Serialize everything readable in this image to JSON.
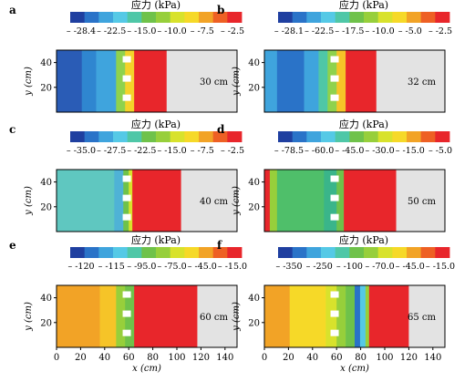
{
  "panels": [
    {
      "letter": "a",
      "depth_label": "30 cm",
      "colorbar": {
        "title": "应力 (kPa)",
        "ticks": [
          "-28.4",
          "-22.5",
          "-15.0",
          "-10.0",
          "-7.5",
          "-2.5"
        ]
      }
    },
    {
      "letter": "b",
      "depth_label": "32 cm",
      "colorbar": {
        "title": "应力 (kPa)",
        "ticks": [
          "-28.1",
          "-22.5",
          "-17.5",
          "-10.0",
          "-5.0",
          "-2.5"
        ]
      }
    },
    {
      "letter": "c",
      "depth_label": "40 cm",
      "colorbar": {
        "title": "应力 (kPa)",
        "ticks": [
          "-35.0",
          "-27.5",
          "-22.5",
          "-15.0",
          "-7.5",
          "-2.5"
        ]
      }
    },
    {
      "letter": "d",
      "depth_label": "50 cm",
      "colorbar": {
        "title": "应力 (kPa)",
        "ticks": [
          "-78.5",
          "-60.0",
          "-45.0",
          "-30.0",
          "-15.0",
          "-5.0"
        ]
      }
    },
    {
      "letter": "e",
      "depth_label": "60 cm",
      "colorbar": {
        "title": "应力 (kPa)",
        "ticks": [
          "-120",
          "-115",
          "-95.0",
          "-75.0",
          "-45.0",
          "-15.0"
        ]
      }
    },
    {
      "letter": "f",
      "depth_label": "65 cm",
      "colorbar": {
        "title": "应力 (kPa)",
        "ticks": [
          "-350",
          "-250",
          "-100",
          "-70.0",
          "-45.0",
          "-15.0"
        ]
      }
    }
  ],
  "colorbar_colors": [
    "#1f3fa0",
    "#2a73c8",
    "#3fa4dd",
    "#55c9e6",
    "#4fc7a7",
    "#6fc24a",
    "#97cf3b",
    "#d8e22c",
    "#f6d928",
    "#f2a326",
    "#ee6024",
    "#e8262b"
  ],
  "chart_data": {
    "type": "heatmap",
    "x_axis": {
      "label": "x (cm)",
      "ticks": [
        0,
        20,
        40,
        60,
        80,
        100,
        120,
        140
      ]
    },
    "y_axis": {
      "label": "y (cm)",
      "ticks": [
        20,
        40
      ]
    },
    "unit": "kPa",
    "panels": [
      {
        "letter": "a",
        "depth": "30 cm",
        "colorbar_ticks": [
          -28.4,
          -22.5,
          -15.0,
          -10.0,
          -7.5,
          -2.5
        ]
      },
      {
        "letter": "b",
        "depth": "32 cm",
        "colorbar_ticks": [
          -28.1,
          -22.5,
          -17.5,
          -10.0,
          -5.0,
          -2.5
        ]
      },
      {
        "letter": "c",
        "depth": "40 cm",
        "colorbar_ticks": [
          -35.0,
          -27.5,
          -22.5,
          -15.0,
          -7.5,
          -2.5
        ]
      },
      {
        "letter": "d",
        "depth": "50 cm",
        "colorbar_ticks": [
          -78.5,
          -60.0,
          -45.0,
          -30.0,
          -15.0,
          -5.0
        ]
      },
      {
        "letter": "e",
        "depth": "60 cm",
        "colorbar_ticks": [
          -120,
          -115,
          -95.0,
          -75.0,
          -45.0,
          -15.0
        ]
      },
      {
        "letter": "f",
        "depth": "65 cm",
        "colorbar_ticks": [
          -350,
          -250,
          -100,
          -70.0,
          -45.0,
          -15.0
        ]
      }
    ]
  }
}
